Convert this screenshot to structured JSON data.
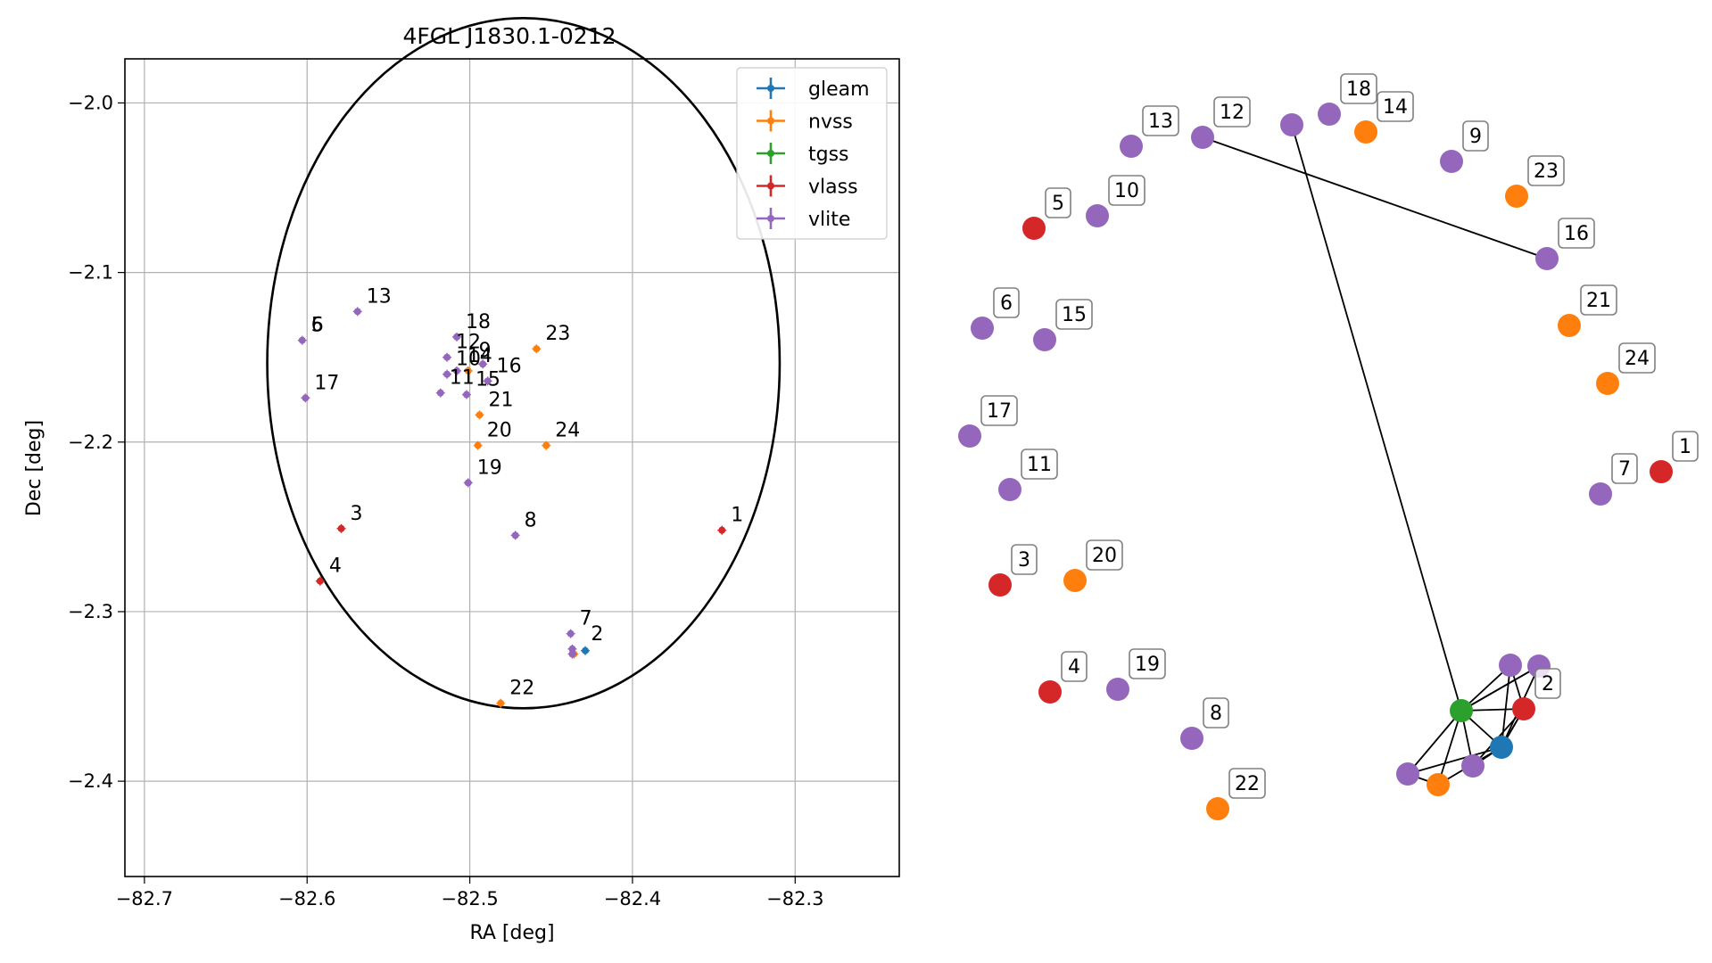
{
  "chart_data": [
    {
      "type": "scatter",
      "title": "4FGL J1830.1-0212",
      "xlabel": "RA [deg]",
      "ylabel": "Dec [deg]",
      "xlim": [
        -82.712,
        -82.236
      ],
      "ylim": [
        -2.4562,
        -1.974
      ],
      "x_ticks": [
        -82.7,
        -82.6,
        -82.5,
        -82.4,
        -82.3
      ],
      "x_tick_labels": [
        "−82.7",
        "−82.6",
        "−82.5",
        "−82.4",
        "−82.3"
      ],
      "y_ticks": [
        -2.0,
        -2.1,
        -2.2,
        -2.3,
        -2.4
      ],
      "y_tick_labels": [
        "−2.0",
        "−2.1",
        "−2.2",
        "−2.3",
        "−2.4"
      ],
      "grid": true,
      "legend_position": "top-right",
      "ellipse": {
        "center_ra": -82.467,
        "center_dec": -2.1535,
        "radius_ra": 0.1575,
        "radius_dec": 0.2035
      },
      "series": [
        {
          "name": "gleam",
          "color": "#1f77b4",
          "points": [
            {
              "ra": -82.429,
              "dec": -2.323
            }
          ]
        },
        {
          "name": "nvss",
          "color": "#ff7f0e",
          "points": [
            {
              "ra": -82.459,
              "dec": -2.145
            },
            {
              "ra": -82.501,
              "dec": -2.158
            },
            {
              "ra": -82.494,
              "dec": -2.184
            },
            {
              "ra": -82.495,
              "dec": -2.202
            },
            {
              "ra": -82.453,
              "dec": -2.202
            },
            {
              "ra": -82.436,
              "dec": -2.325
            },
            {
              "ra": -82.481,
              "dec": -2.354
            }
          ]
        },
        {
          "name": "tgss",
          "color": "#2ca02c",
          "points": []
        },
        {
          "name": "vlass",
          "color": "#d62728",
          "points": [
            {
              "ra": -82.345,
              "dec": -2.252
            },
            {
              "ra": -82.579,
              "dec": -2.251
            },
            {
              "ra": -82.592,
              "dec": -2.282
            }
          ]
        },
        {
          "name": "vlite",
          "color": "#9467bd",
          "points": [
            {
              "ra": -82.603,
              "dec": -2.14
            },
            {
              "ra": -82.601,
              "dec": -2.174
            },
            {
              "ra": -82.569,
              "dec": -2.123
            },
            {
              "ra": -82.508,
              "dec": -2.138
            },
            {
              "ra": -82.514,
              "dec": -2.15
            },
            {
              "ra": -82.508,
              "dec": -2.158
            },
            {
              "ra": -82.514,
              "dec": -2.16
            },
            {
              "ra": -82.518,
              "dec": -2.171
            },
            {
              "ra": -82.502,
              "dec": -2.172
            },
            {
              "ra": -82.492,
              "dec": -2.154
            },
            {
              "ra": -82.489,
              "dec": -2.164
            },
            {
              "ra": -82.501,
              "dec": -2.224
            },
            {
              "ra": -82.472,
              "dec": -2.255
            },
            {
              "ra": -82.438,
              "dec": -2.313
            },
            {
              "ra": -82.437,
              "dec": -2.322
            },
            {
              "ra": -82.437,
              "dec": -2.325
            }
          ]
        }
      ],
      "annotations": [
        {
          "text": "1",
          "ra": -82.345,
          "dec": -2.252
        },
        {
          "text": "2",
          "ra": -82.431,
          "dec": -2.322
        },
        {
          "text": "3",
          "ra": -82.579,
          "dec": -2.251
        },
        {
          "text": "4",
          "ra": -82.592,
          "dec": -2.282
        },
        {
          "text": "5",
          "ra": -82.603,
          "dec": -2.14
        },
        {
          "text": "6",
          "ra": -82.603,
          "dec": -2.14
        },
        {
          "text": "7",
          "ra": -82.438,
          "dec": -2.313
        },
        {
          "text": "8",
          "ra": -82.472,
          "dec": -2.255
        },
        {
          "text": "9",
          "ra": -82.5,
          "dec": -2.155
        },
        {
          "text": "10",
          "ra": -82.514,
          "dec": -2.16
        },
        {
          "text": "11",
          "ra": -82.518,
          "dec": -2.171
        },
        {
          "text": "12",
          "ra": -82.514,
          "dec": -2.15
        },
        {
          "text": "13",
          "ra": -82.569,
          "dec": -2.123
        },
        {
          "text": "14",
          "ra": -82.507,
          "dec": -2.158
        },
        {
          "text": "15",
          "ra": -82.502,
          "dec": -2.172
        },
        {
          "text": "16",
          "ra": -82.489,
          "dec": -2.164
        },
        {
          "text": "17",
          "ra": -82.601,
          "dec": -2.174
        },
        {
          "text": "18",
          "ra": -82.508,
          "dec": -2.138
        },
        {
          "text": "19",
          "ra": -82.501,
          "dec": -2.224
        },
        {
          "text": "20",
          "ra": -82.495,
          "dec": -2.202
        },
        {
          "text": "21",
          "ra": -82.494,
          "dec": -2.184
        },
        {
          "text": "22",
          "ra": -82.481,
          "dec": -2.354
        },
        {
          "text": "23",
          "ra": -82.459,
          "dec": -2.145
        },
        {
          "text": "24",
          "ra": -82.453,
          "dec": -2.202
        }
      ]
    },
    {
      "type": "network",
      "nodes": [
        {
          "label": "",
          "color": "#1f77b4"
        },
        {
          "label": "",
          "color": "#2ca02c"
        },
        {
          "label": "1",
          "color": "#d62728"
        },
        {
          "label": "2",
          "color": "#d62728"
        },
        {
          "label": "3",
          "color": "#d62728"
        },
        {
          "label": "4",
          "color": "#d62728"
        },
        {
          "label": "5",
          "color": "#d62728"
        },
        {
          "label": "6",
          "color": "#9467bd"
        },
        {
          "label": "7",
          "color": "#9467bd"
        },
        {
          "label": "8",
          "color": "#9467bd"
        },
        {
          "label": "9",
          "color": "#9467bd"
        },
        {
          "label": "10",
          "color": "#9467bd"
        },
        {
          "label": "11",
          "color": "#9467bd"
        },
        {
          "label": "12",
          "color": "#9467bd"
        },
        {
          "label": "13",
          "color": "#9467bd"
        },
        {
          "label": "14",
          "color": "#ff7f0e"
        },
        {
          "label": "15",
          "color": "#9467bd"
        },
        {
          "label": "16",
          "color": "#9467bd"
        },
        {
          "label": "17",
          "color": "#9467bd"
        },
        {
          "label": "18",
          "color": "#9467bd"
        },
        {
          "label": "19",
          "color": "#9467bd"
        },
        {
          "label": "20",
          "color": "#ff7f0e"
        },
        {
          "label": "21",
          "color": "#ff7f0e"
        },
        {
          "label": "22",
          "color": "#ff7f0e"
        },
        {
          "label": "23",
          "color": "#ff7f0e"
        },
        {
          "label": "24",
          "color": "#ff7f0e"
        },
        {
          "label": "",
          "color": "#9467bd"
        },
        {
          "label": "",
          "color": "#9467bd"
        },
        {
          "label": "",
          "color": "#9467bd"
        },
        {
          "label": "",
          "color": "#9467bd"
        },
        {
          "label": "",
          "color": "#9467bd"
        },
        {
          "label": "",
          "color": "#ff7f0e"
        }
      ],
      "edges": [
        [
          17,
          13
        ],
        [
          1,
          0
        ],
        [
          1,
          3
        ],
        [
          1,
          26
        ],
        [
          1,
          27
        ],
        [
          1,
          28
        ],
        [
          1,
          29
        ],
        [
          1,
          30
        ],
        [
          1,
          31
        ],
        [
          0,
          3
        ],
        [
          0,
          26
        ],
        [
          0,
          27
        ],
        [
          0,
          29
        ],
        [
          0,
          31
        ],
        [
          0,
          28
        ],
        [
          3,
          27
        ],
        [
          3,
          26
        ],
        [
          3,
          0
        ],
        [
          31,
          28
        ],
        [
          29,
          1
        ]
      ]
    }
  ]
}
